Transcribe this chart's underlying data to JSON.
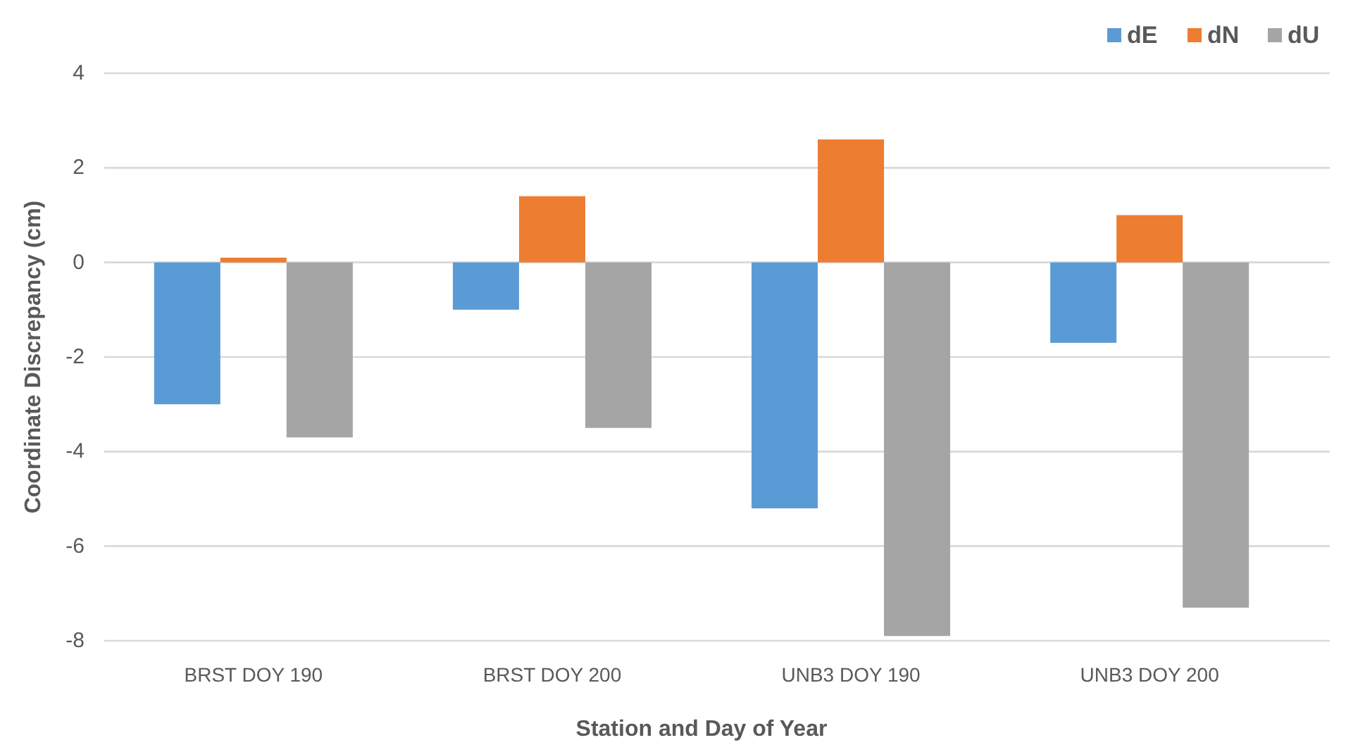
{
  "chart_data": {
    "type": "bar",
    "xlabel": "Station and Day of Year",
    "ylabel": "Coordinate Discrepancy (cm)",
    "categories": [
      "BRST DOY 190",
      "BRST DOY 200",
      "UNB3 DOY 190",
      "UNB3 DOY 200"
    ],
    "series": [
      {
        "name": "dE",
        "color": "#5b9bd5",
        "values": [
          -3.0,
          -1.0,
          -5.2,
          -1.7
        ]
      },
      {
        "name": "dN",
        "color": "#ed7d31",
        "values": [
          0.1,
          1.4,
          2.6,
          1.0
        ]
      },
      {
        "name": "dU",
        "color": "#a5a5a5",
        "values": [
          -3.7,
          -3.5,
          -7.9,
          -7.3
        ]
      }
    ],
    "ylim": [
      -8,
      4
    ],
    "yticks": [
      -8,
      -6,
      -4,
      -2,
      0,
      2,
      4
    ],
    "grid": "y",
    "legend": "top right"
  }
}
